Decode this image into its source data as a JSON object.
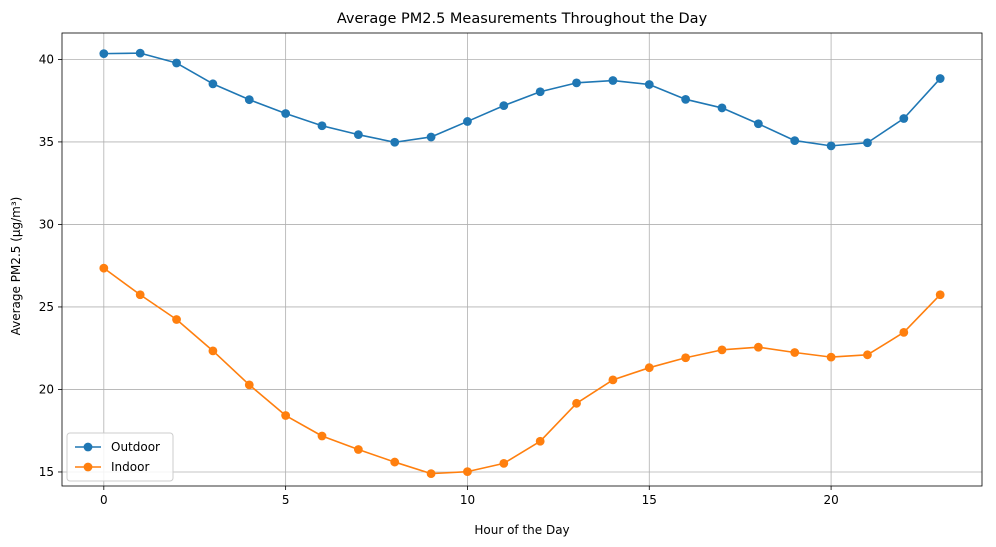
{
  "chart_data": {
    "type": "line",
    "title": "Average PM2.5 Measurements Throughout the Day",
    "xlabel": "Hour of the Day",
    "ylabel": "Average PM2.5 (μg/m³)",
    "x": [
      0,
      1,
      2,
      3,
      4,
      5,
      6,
      7,
      8,
      9,
      10,
      11,
      12,
      13,
      14,
      15,
      16,
      17,
      18,
      19,
      20,
      21,
      22,
      23
    ],
    "xlim": [
      -1.15,
      24.15
    ],
    "ylim": [
      14.15,
      41.6
    ],
    "x_ticks": [
      0,
      5,
      10,
      15,
      20
    ],
    "y_ticks": [
      15,
      20,
      25,
      30,
      35,
      40
    ],
    "grid": true,
    "legend_position": "lower-left",
    "series": [
      {
        "name": "Outdoor",
        "color": "#1f77b4",
        "marker": "circle",
        "values": [
          40.35,
          40.38,
          39.78,
          38.52,
          37.56,
          36.72,
          35.98,
          35.44,
          34.98,
          35.3,
          36.24,
          37.2,
          38.04,
          38.58,
          38.72,
          38.48,
          37.58,
          37.06,
          36.1,
          35.08,
          34.76,
          34.95,
          36.42,
          38.84
        ]
      },
      {
        "name": "Indoor",
        "color": "#ff7f0e",
        "marker": "circle",
        "values": [
          27.35,
          25.74,
          24.24,
          22.34,
          20.28,
          18.42,
          17.18,
          16.36,
          15.6,
          14.9,
          15.02,
          15.52,
          16.86,
          19.16,
          20.58,
          21.32,
          21.92,
          22.4,
          22.56,
          22.24,
          21.96,
          22.1,
          23.46,
          25.74
        ]
      }
    ]
  }
}
